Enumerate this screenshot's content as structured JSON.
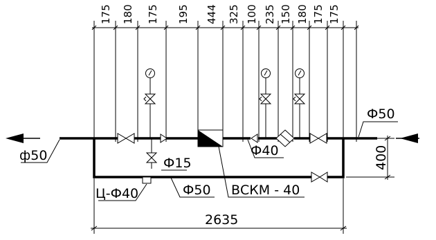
{
  "dimensions_top": [
    "175",
    "180",
    "175",
    "195",
    "444",
    "325",
    "100",
    "235",
    "150",
    "180",
    "175",
    "175"
  ],
  "labels": {
    "dia_left": "ф50",
    "dia_right": "Ф50",
    "branch_15": "Ф15",
    "main_40": "Ф40",
    "bypass_50": "Ф50",
    "drain": "Ц-Ф40",
    "meter": "ВСКМ - 40",
    "height": "400",
    "total_length": "2635"
  }
}
